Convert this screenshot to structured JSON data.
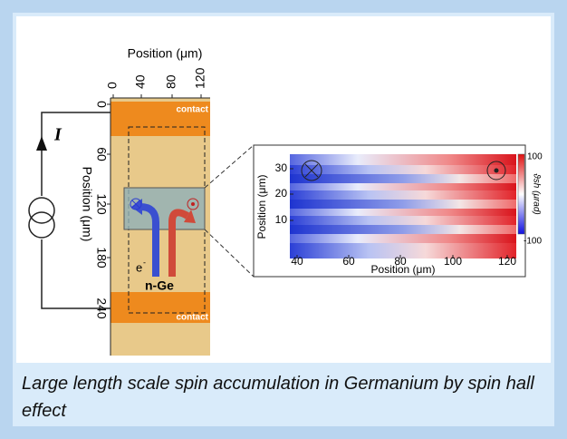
{
  "figure": {
    "top_axis": {
      "label": "Position (μm)",
      "ticks": [
        0,
        40,
        80,
        120
      ]
    },
    "left_axis": {
      "label": "Position (μm)",
      "ticks": [
        0,
        60,
        120,
        180,
        240
      ]
    },
    "labels": {
      "contact_top": "contact",
      "contact_bottom": "contact",
      "current": "I",
      "electron": "e",
      "electron_charge": "-",
      "material": "n-Ge"
    },
    "inset": {
      "x_label": "Position (μm)",
      "x_ticks": [
        40,
        60,
        80,
        100,
        120
      ],
      "y_label": "Position (μm)",
      "y_ticks": [
        30,
        20,
        10
      ],
      "colorbar_ticks": [
        100,
        -100
      ],
      "colorbar_label": "ϑsh (μrad)"
    }
  },
  "caption": "Large length scale spin accumulation in Germanium by spin hall effect"
}
